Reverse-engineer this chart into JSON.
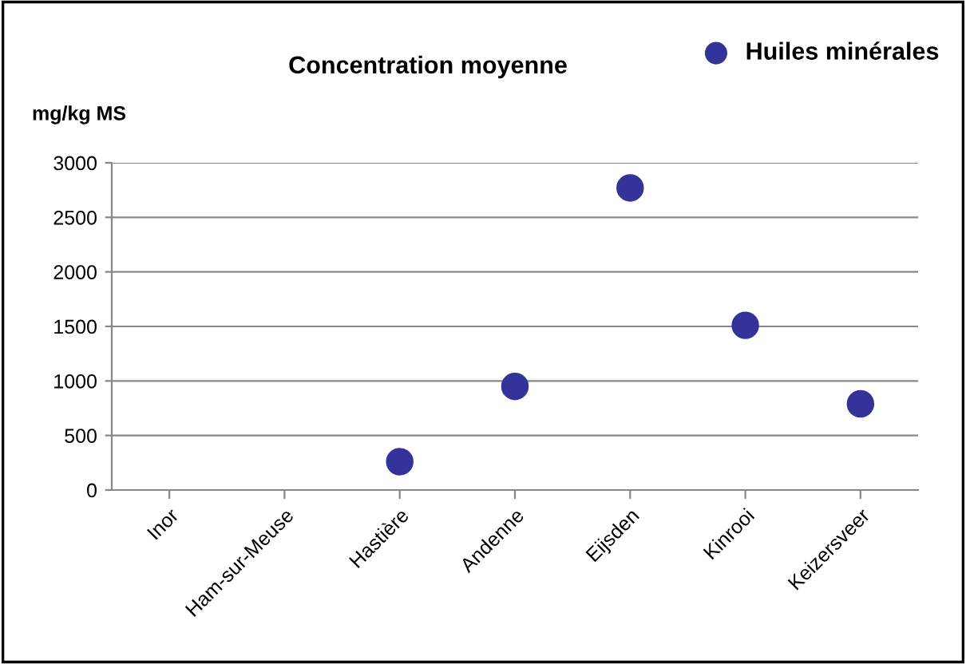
{
  "chart_data": {
    "type": "scatter",
    "title": "Concentration moyenne",
    "ylabel": "mg/kg MS",
    "categories": [
      "Inor",
      "Ham-sur-Meuse",
      "Hastière",
      "Andenne",
      "Eijsden",
      "Kinrooi",
      "Keizersveer"
    ],
    "series": [
      {
        "name": "Huiles minérales",
        "color": "#333399",
        "values": [
          null,
          null,
          260,
          950,
          2770,
          1510,
          790
        ]
      }
    ],
    "ylim": [
      0,
      3000
    ],
    "yticks": [
      0,
      500,
      1000,
      1500,
      2000,
      2500,
      3000
    ],
    "grid": "y",
    "legend": "top right",
    "marker": "circle"
  }
}
